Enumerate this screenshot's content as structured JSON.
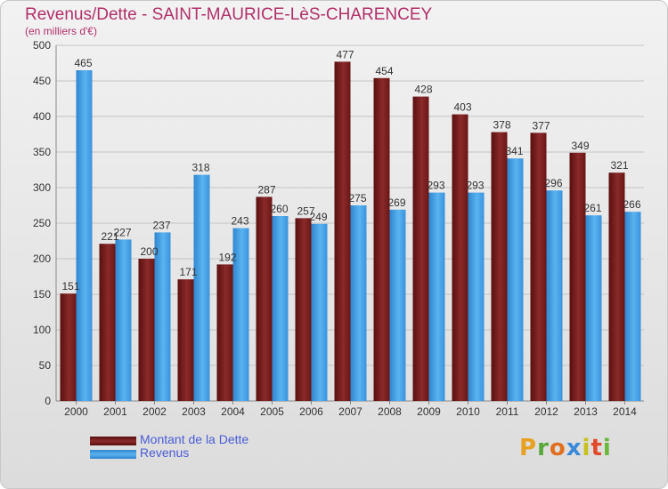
{
  "header": {
    "title": "Revenus/Dette - SAINT-MAURICE-LèS-CHARENCEY",
    "subtitle": "(en milliers d'€)"
  },
  "chart_data": {
    "type": "bar",
    "title": "Revenus/Dette - SAINT-MAURICE-LèS-CHARENCEY",
    "ylabel": "(en milliers d'€)",
    "categories": [
      "2000",
      "2001",
      "2002",
      "2003",
      "2004",
      "2005",
      "2006",
      "2007",
      "2008",
      "2009",
      "2010",
      "2011",
      "2012",
      "2013",
      "2014"
    ],
    "series": [
      {
        "name": "Montant de la Dette",
        "color": "#7a1c1c",
        "values": [
          151,
          221,
          200,
          171,
          192,
          287,
          257,
          477,
          454,
          428,
          403,
          378,
          377,
          349,
          321
        ]
      },
      {
        "name": "Revenus",
        "color": "#4aa3e8",
        "values": [
          465,
          227,
          237,
          318,
          243,
          260,
          249,
          275,
          269,
          293,
          293,
          341,
          296,
          261,
          266
        ]
      }
    ],
    "ylim": [
      0,
      500
    ],
    "yticks": [
      0,
      50,
      100,
      150,
      200,
      250,
      300,
      350,
      400,
      450,
      500
    ],
    "grid": true,
    "legend_position": "bottom-left"
  },
  "legend": {
    "items": [
      {
        "label": "Montant de la Dette",
        "color": "#7a1c1c"
      },
      {
        "label": "Revenus",
        "color": "#4aa3e8"
      }
    ]
  },
  "logo": {
    "text": "Proxiti"
  }
}
